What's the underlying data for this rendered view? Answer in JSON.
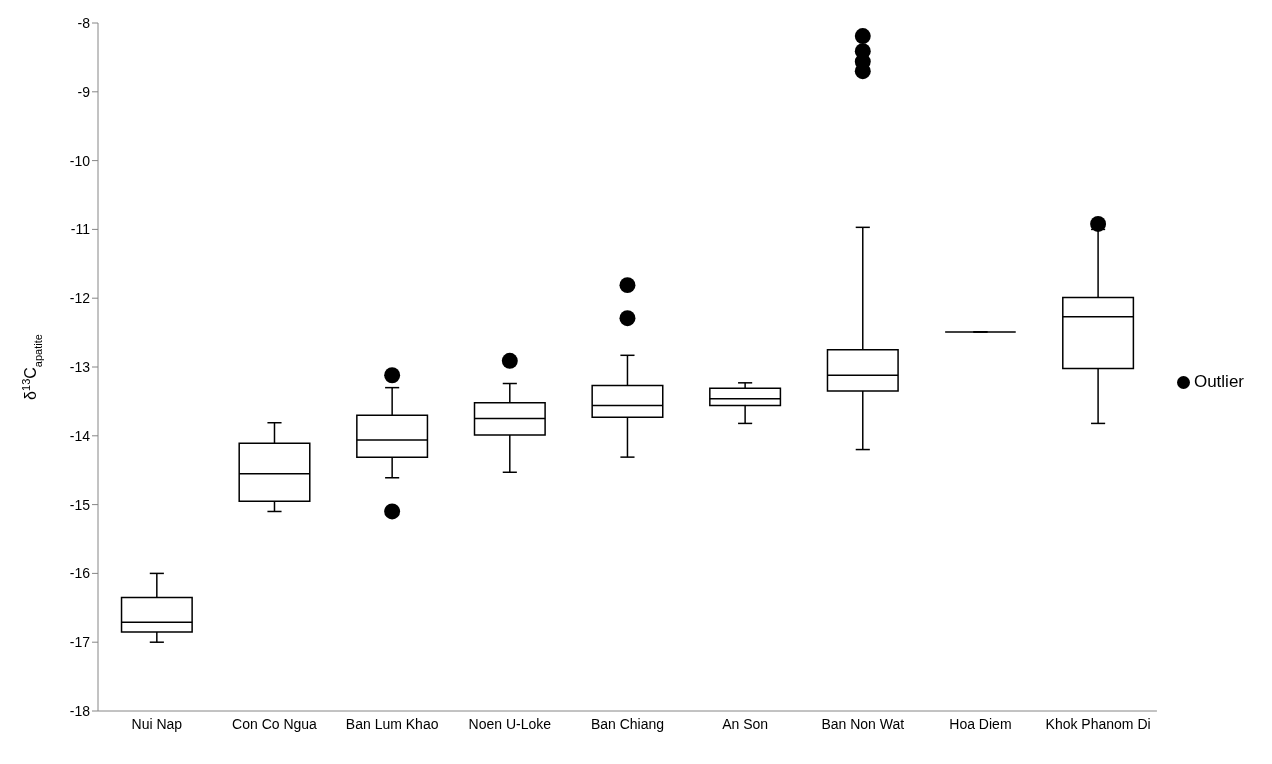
{
  "chart_data": {
    "type": "box",
    "ylabel": "δ$^{13}$C$_{apatite}$",
    "categories": [
      "Nui Nap",
      "Con Co Ngua",
      "Ban Lum Khao",
      "Noen U-Loke",
      "Ban Chiang",
      "An Son",
      "Ban Non Wat",
      "Hoa Diem",
      "Khok Phanom Di"
    ],
    "boxes": [
      {
        "low": -17.0,
        "q1": -16.85,
        "median": -16.71,
        "q3": -16.35,
        "high": -16.0
      },
      {
        "low": -15.1,
        "q1": -14.95,
        "median": -14.55,
        "q3": -14.11,
        "high": -13.81
      },
      {
        "low": -14.61,
        "q1": -14.31,
        "median": -14.06,
        "q3": -13.7,
        "high": -13.3
      },
      {
        "low": -14.53,
        "q1": -13.99,
        "median": -13.75,
        "q3": -13.52,
        "high": -13.24
      },
      {
        "low": -14.31,
        "q1": -13.73,
        "median": -13.56,
        "q3": -13.27,
        "high": -12.83
      },
      {
        "low": -13.82,
        "q1": -13.56,
        "median": -13.46,
        "q3": -13.31,
        "high": -13.23
      },
      {
        "low": -14.2,
        "q1": -13.35,
        "median": -13.12,
        "q3": -12.75,
        "high": -10.97
      },
      {
        "low": -12.49,
        "q1": -12.49,
        "median": -12.49,
        "q3": -12.49,
        "high": -12.49
      },
      {
        "low": -13.82,
        "q1": -13.02,
        "median": -12.27,
        "q3": -11.99,
        "high": -11.0
      }
    ],
    "series": [
      {
        "type": "scatter",
        "name": "Outlier",
        "color": "#000000",
        "x": [
          "Ban Lum Khao",
          "Ban Lum Khao",
          "Noen U-Loke",
          "Ban Chiang",
          "Ban Chiang",
          "Ban Non Wat",
          "Ban Non Wat",
          "Ban Non Wat",
          "Ban Non Wat",
          "Khok Phanom Di"
        ],
        "values": [
          -13.12,
          -15.1,
          -12.91,
          -11.81,
          -12.29,
          -8.19,
          -8.41,
          -8.56,
          -8.7,
          -10.92
        ]
      }
    ],
    "color": "#000000",
    "marker": "circle",
    "ylim": [
      -18,
      -8
    ],
    "yticks": [
      -18,
      -17,
      -16,
      -15,
      -14,
      -13,
      -12,
      -11,
      -10,
      -9,
      -8
    ],
    "legend": "right",
    "grid": false
  }
}
